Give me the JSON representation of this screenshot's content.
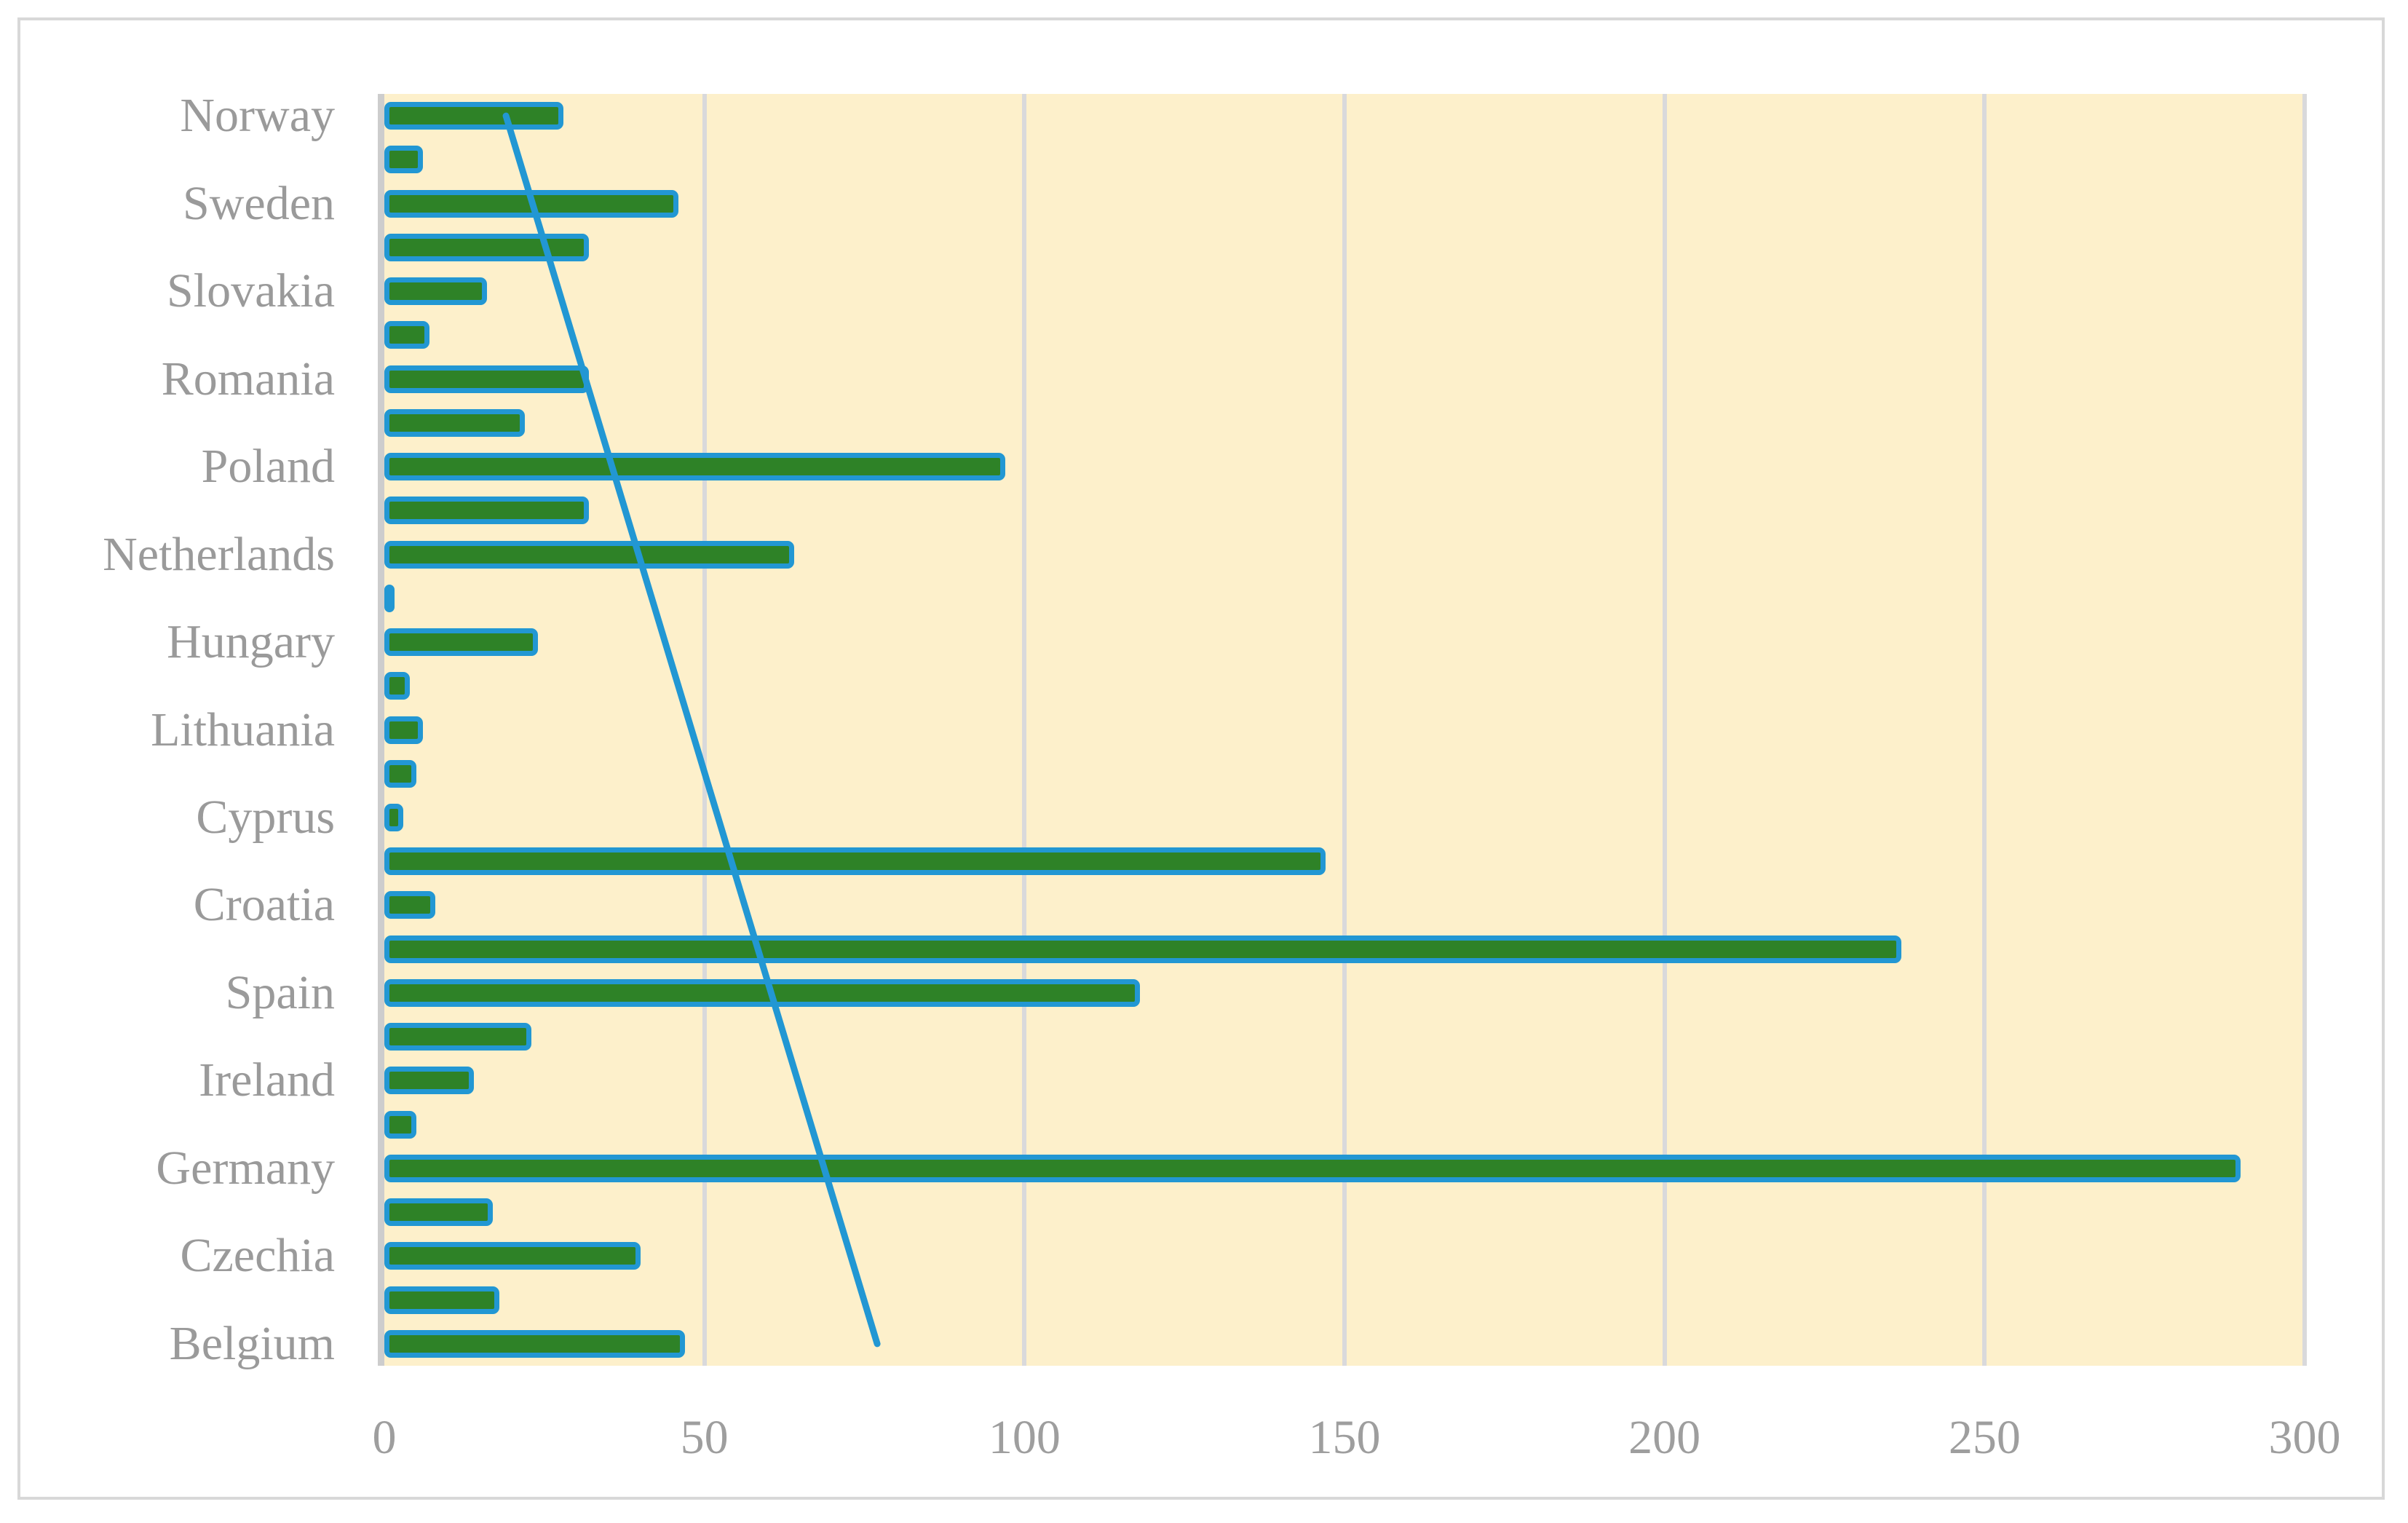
{
  "chart_data": {
    "type": "bar",
    "orientation": "horizontal",
    "title": "",
    "xlabel": "",
    "ylabel": "",
    "xlim": [
      0,
      300
    ],
    "x_ticks": [
      0,
      50,
      100,
      150,
      200,
      250,
      300
    ],
    "grid": "vertical-gridlines-on",
    "legend": "none",
    "category_label_interval": "every-other-row",
    "categories": [
      "Norway",
      "",
      "Sweden",
      "",
      "Slovakia",
      "",
      "Romania",
      "",
      "Poland",
      "",
      "Netherlands",
      "",
      "Hungary",
      "",
      "Lithuania",
      "",
      "Cyprus",
      "",
      "Croatia",
      "",
      "Spain",
      "",
      "Ireland",
      "",
      "Germany",
      "",
      "Czechia",
      "",
      "Belgium"
    ],
    "values": [
      28,
      6,
      46,
      32,
      16,
      7,
      32,
      22,
      97,
      32,
      64,
      1,
      24,
      4,
      6,
      5,
      3,
      147,
      8,
      237,
      118,
      23,
      14,
      5,
      290,
      17,
      40,
      18,
      47
    ],
    "trendline": {
      "type": "linear",
      "start_value": 19,
      "end_value": 77,
      "start_row": 0,
      "end_row": 28
    },
    "colors": {
      "bar_fill": "#2E8227",
      "bar_outline": "#2297D3",
      "trendline": "#2297D3",
      "plot_background": "#FDF0CB",
      "gridline": "#D9D9DB",
      "axis_line": "#CDCDCD",
      "category_label": "#9A9A9A",
      "tick_label": "#9E9E9E",
      "chart_border": "#D8D8D8"
    }
  }
}
